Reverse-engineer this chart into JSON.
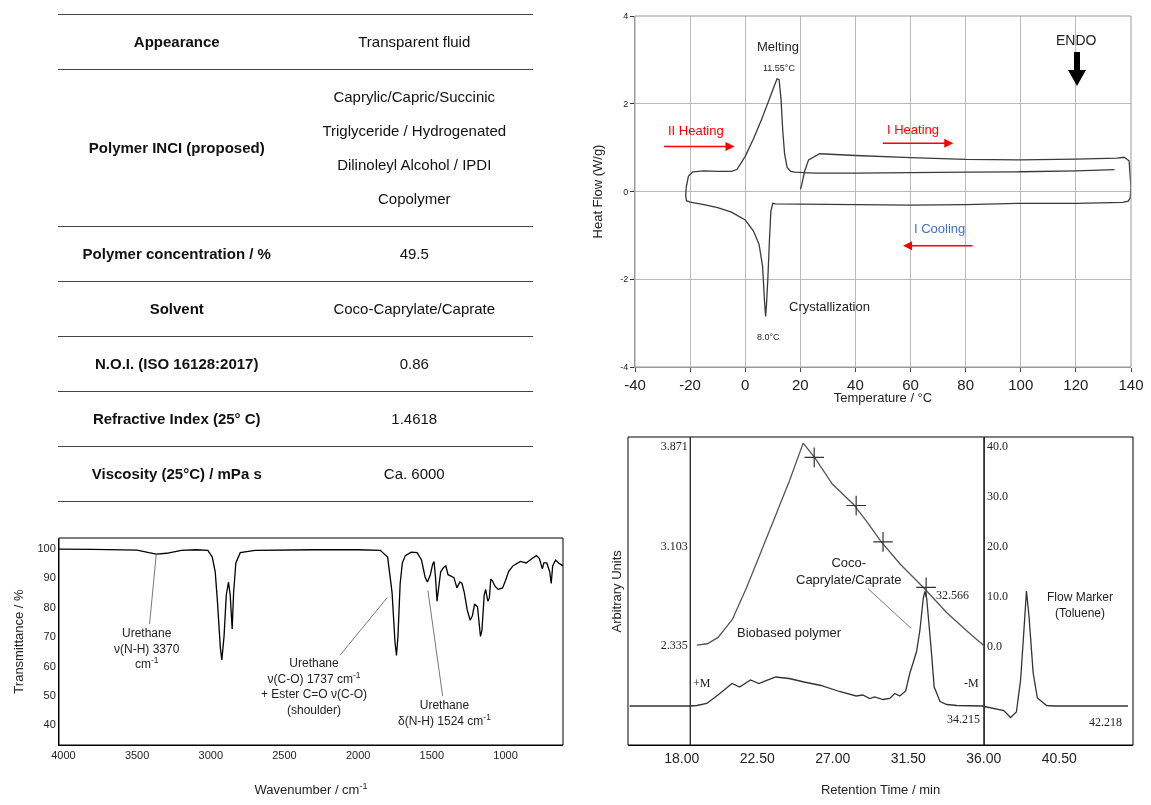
{
  "chart_data": [
    {
      "type": "other",
      "annotations": [
        "Appearance",
        "Transparent fluid",
        "Polymer INCI (proposed)",
        "Caprylic/Capric/Succinic Triglyceride / Hydrogenated Dilinoleyl Alcohol / IPDI Copolymer",
        "Polymer concentration  / %",
        "49.5",
        "Solvent",
        "Coco-Caprylate/Caprate",
        "N.O.I. (ISO 16128:2017)",
        "0.86",
        "Refractive Index (25° C)",
        "1.4618",
        "Viscosity (25°C) / mPa s",
        "Ca. 6000"
      ]
    },
    {
      "type": "line",
      "xlabel": "Temperature / °C",
      "ylabel": "Heat Flow (W/g)",
      "xlim": [
        -40,
        140
      ],
      "xticks": [
        -40,
        -20,
        0,
        20,
        40,
        60,
        80,
        100,
        120,
        140
      ],
      "ylim": [
        -4,
        4
      ],
      "yticks": [
        -4,
        -2,
        0,
        2,
        4
      ],
      "grid": true,
      "series": [
        {
          "color": "#3a3a3a",
          "x": [
            20,
            20.5,
            21.5,
            23,
            27,
            40,
            60,
            80,
            100,
            120,
            135,
            137.5,
            139.3,
            140,
            139.7,
            139,
            137,
            120,
            100,
            80,
            60,
            40,
            20,
            11,
            10,
            9.3,
            8.8,
            8.2,
            7.7,
            7.4,
            7.0,
            6.3,
            5,
            3,
            0,
            -5,
            -10,
            -15,
            -20,
            -21.3,
            -21.6,
            -21.4,
            -20.6,
            -19,
            -15,
            -10,
            -5,
            -3,
            0,
            3,
            6,
            9,
            10.5,
            11.55,
            12.3,
            13,
            13.6,
            14.3,
            15.2,
            16.5,
            18,
            25,
            40,
            60,
            80,
            100,
            120,
            134
          ],
          "values": [
            0.05,
            0.15,
            0.45,
            0.72,
            0.86,
            0.82,
            0.77,
            0.73,
            0.72,
            0.74,
            0.76,
            0.78,
            0.7,
            0.1,
            -0.15,
            -0.22,
            -0.25,
            -0.27,
            -0.27,
            -0.3,
            -0.31,
            -0.3,
            -0.29,
            -0.28,
            -0.27,
            -0.45,
            -1.1,
            -2,
            -2.6,
            -2.85,
            -2.5,
            -1.7,
            -1.2,
            -0.9,
            -0.65,
            -0.47,
            -0.37,
            -0.3,
            -0.24,
            -0.21,
            -0.1,
            0.1,
            0.35,
            0.45,
            0.47,
            0.46,
            0.46,
            0.5,
            0.8,
            1.2,
            1.65,
            2.15,
            2.4,
            2.57,
            2.55,
            2.1,
            1.4,
            0.85,
            0.55,
            0.46,
            0.44,
            0.42,
            0.42,
            0.43,
            0.44,
            0.45,
            0.47,
            0.5
          ]
        }
      ],
      "annotations": [
        "Melting",
        "11.55°C",
        "II Heating",
        "I Heating",
        "I Cooling",
        "ENDO",
        "Crystallization",
        "8.0°C"
      ]
    },
    {
      "type": "line",
      "xlabel": "Wavenumber / cm$^{-1}$",
      "ylabel": "Transmittance / %",
      "xlim": [
        4030,
        610
      ],
      "xticks": [
        4000,
        3500,
        3000,
        2500,
        2000,
        1500,
        1000
      ],
      "ylim": [
        33,
        103.5
      ],
      "yticks": [
        40,
        50,
        60,
        70,
        80,
        90,
        100
      ],
      "series": [
        {
          "color": "#000000",
          "x": [
            4030,
            3800,
            3500,
            3420,
            3370,
            3300,
            3200,
            3100,
            3020,
            2990,
            2970,
            2955,
            2935,
            2925,
            2910,
            2895,
            2880,
            2868,
            2855,
            2845,
            2830,
            2800,
            2700,
            2300,
            2000,
            1850,
            1800,
            1770,
            1750,
            1740,
            1730,
            1715,
            1700,
            1680,
            1640,
            1600,
            1570,
            1545,
            1530,
            1510,
            1495,
            1485,
            1475,
            1465,
            1455,
            1440,
            1420,
            1405,
            1390,
            1370,
            1350,
            1330,
            1310,
            1295,
            1280,
            1260,
            1240,
            1225,
            1210,
            1190,
            1170,
            1160,
            1145,
            1135,
            1120,
            1110,
            1100,
            1090,
            1070,
            1050,
            1020,
            1000,
            980,
            950,
            900,
            860,
            820,
            790,
            770,
            750,
            740,
            720,
            700,
            690,
            680,
            660,
            640,
            610
          ],
          "values": [
            99.7,
            99.6,
            99.4,
            98.5,
            98.0,
            98.3,
            99.3,
            99.5,
            99.3,
            97,
            92,
            82,
            66,
            62,
            70,
            84,
            88.5,
            84,
            72.5,
            85,
            95,
            98.5,
            99.3,
            99.5,
            99.5,
            99.3,
            97,
            85,
            68,
            63.5,
            70,
            88,
            95,
            97.5,
            98.7,
            98.5,
            96,
            90,
            88.5,
            91,
            94.5,
            95.5,
            90,
            82,
            86,
            92,
            93.5,
            94,
            91,
            90.5,
            90,
            86.5,
            88.5,
            88,
            85,
            79,
            75.5,
            77,
            81,
            80,
            70,
            72,
            84,
            86,
            82,
            83,
            89.5,
            89,
            87,
            86,
            86.5,
            89,
            92,
            94,
            95.5,
            95,
            96.5,
            97.5,
            96.5,
            93,
            95,
            95,
            92,
            88,
            94,
            96,
            95,
            94
          ]
        }
      ],
      "annotations": [
        {
          "text": "Urethane\nν(N-H) 3370\ncm$^{-1}$",
          "x": 3370,
          "y": 98
        },
        "Urethane\nν(C-O) 1737 cm$^{-1}$\n+ Ester C=O ν(C-O)\n(shoulder)",
        "Urethane\nδ(N-H) 1524 cm$^{-1}$"
      ]
    },
    {
      "type": "line",
      "xlabel": "Retention Time / min",
      "ylabel": "Arbitrary Units",
      "xlim": [
        14.8,
        44.9
      ],
      "xticks": [
        {
          "value": 18,
          "label": "18.00"
        },
        {
          "value": 22.5,
          "label": "22.50"
        },
        {
          "value": 27,
          "label": "27.00"
        },
        {
          "value": 31.5,
          "label": "31.50"
        },
        {
          "value": 36,
          "label": "36.00"
        },
        {
          "value": 40.5,
          "label": "40.50"
        }
      ],
      "ylim": [
        1.567,
        3.937
      ],
      "yticks": [
        2.335,
        3.103,
        3.871
      ],
      "y2lim": [
        -19.9,
        41.7
      ],
      "y2ticks": [
        {
          "value": 0,
          "label": "0.0"
        },
        {
          "value": 10,
          "label": "10.0"
        },
        {
          "value": 20,
          "label": "20.0"
        },
        {
          "value": 30,
          "label": "30.0"
        },
        {
          "value": 40,
          "label": "40.0"
        }
      ],
      "ref_lines": [
        {
          "axis": "x",
          "value": 18.5
        },
        {
          "axis": "x",
          "value": 36
        }
      ],
      "series": [
        {
          "type": "line",
          "color": "#555555",
          "x": [
            18.9,
            19.53,
            20.17,
            21.02,
            21.87,
            22.73,
            23.58,
            24.43,
            25.24,
            25.92,
            26.98,
            28.26,
            29.11,
            29.86,
            31.03,
            32.41,
            33.79,
            35.07,
            35.99
          ],
          "values": [
            2.335,
            2.346,
            2.395,
            2.533,
            2.779,
            3.054,
            3.328,
            3.602,
            3.89,
            3.78,
            3.575,
            3.416,
            3.273,
            3.136,
            2.958,
            2.779,
            2.587,
            2.437,
            2.335
          ]
        },
        {
          "type": "scatter",
          "marker": "cross",
          "color": "#333333",
          "x": [
            25.9,
            28.4,
            30.0,
            32.57
          ],
          "values": [
            3.78,
            3.41,
            3.13,
            2.78
          ]
        },
        {
          "type": "line",
          "axis": "y2",
          "color": "#333333",
          "x": [
            14.9,
            18.5,
            18.9,
            19.5,
            20.2,
            21.0,
            21.45,
            22.1,
            22.6,
            23.6,
            24.4,
            25.3,
            26.3,
            27.4,
            28.4,
            28.8,
            29.2,
            29.5,
            30.0,
            30.4,
            30.7,
            31.0,
            31.35,
            31.6,
            31.8,
            32.0,
            32.2,
            32.4,
            32.5,
            32.6,
            32.85,
            33.05,
            33.4,
            33.8,
            34.4,
            35.9,
            37.2,
            37.6,
            37.95,
            38.2,
            38.4,
            38.55,
            38.7,
            38.95,
            39.2,
            39.75,
            40.2,
            44.6
          ],
          "values": [
            -12.1,
            -12.1,
            -12.0,
            -11.6,
            -9.8,
            -7.6,
            -8.3,
            -6.9,
            -7.6,
            -6.3,
            -6.6,
            -7.3,
            -8.0,
            -9.2,
            -10.1,
            -9.9,
            -10.6,
            -10.3,
            -10.8,
            -10.6,
            -9.6,
            -10.1,
            -9.1,
            -5.5,
            -3.4,
            -1.2,
            3.1,
            9.5,
            10.8,
            9.5,
            0.1,
            -8.3,
            -11.2,
            -11.8,
            -12.0,
            -12.1,
            -13.0,
            -14.4,
            -13.3,
            -6.9,
            3.1,
            10.9,
            5.9,
            -5.5,
            -10.5,
            -12.0,
            -12.1,
            -12.1
          ]
        }
      ],
      "annotations": [
        "Biobased polymer",
        "Coco-\nCaprylate/Caprate",
        "Flow Marker\n(Toluene)",
        "+M",
        "-M",
        "32.566",
        "34.215",
        "42.218"
      ]
    }
  ]
}
